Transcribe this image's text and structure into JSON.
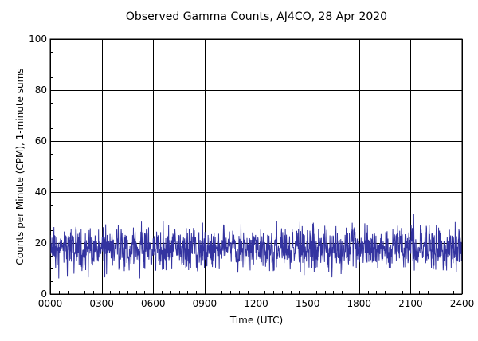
{
  "chart_data": {
    "type": "line",
    "title": "Observed Gamma Counts, AJ4CO, 28 Apr 2020",
    "xlabel": "Time (UTC)",
    "ylabel": "Counts per Minute (CPM), 1-minute sums",
    "xlim": [
      0,
      24
    ],
    "ylim": [
      0,
      100
    ],
    "x_ticks": [
      {
        "value": 0,
        "label": "0000"
      },
      {
        "value": 3,
        "label": "0300"
      },
      {
        "value": 6,
        "label": "0600"
      },
      {
        "value": 9,
        "label": "0900"
      },
      {
        "value": 12,
        "label": "1200"
      },
      {
        "value": 15,
        "label": "1500"
      },
      {
        "value": 18,
        "label": "1800"
      },
      {
        "value": 21,
        "label": "2100"
      },
      {
        "value": 24,
        "label": "2400"
      }
    ],
    "y_ticks": [
      {
        "value": 0,
        "label": "0"
      },
      {
        "value": 20,
        "label": "20"
      },
      {
        "value": 40,
        "label": "40"
      },
      {
        "value": 60,
        "label": "60"
      },
      {
        "value": 80,
        "label": "80"
      },
      {
        "value": 100,
        "label": "100"
      }
    ],
    "grid": true,
    "series": [
      {
        "color": "#3333a0",
        "samples_per_hour": 60,
        "mean": 18,
        "typical_range": [
          9,
          27
        ],
        "min": 6,
        "max": 32
      }
    ]
  }
}
